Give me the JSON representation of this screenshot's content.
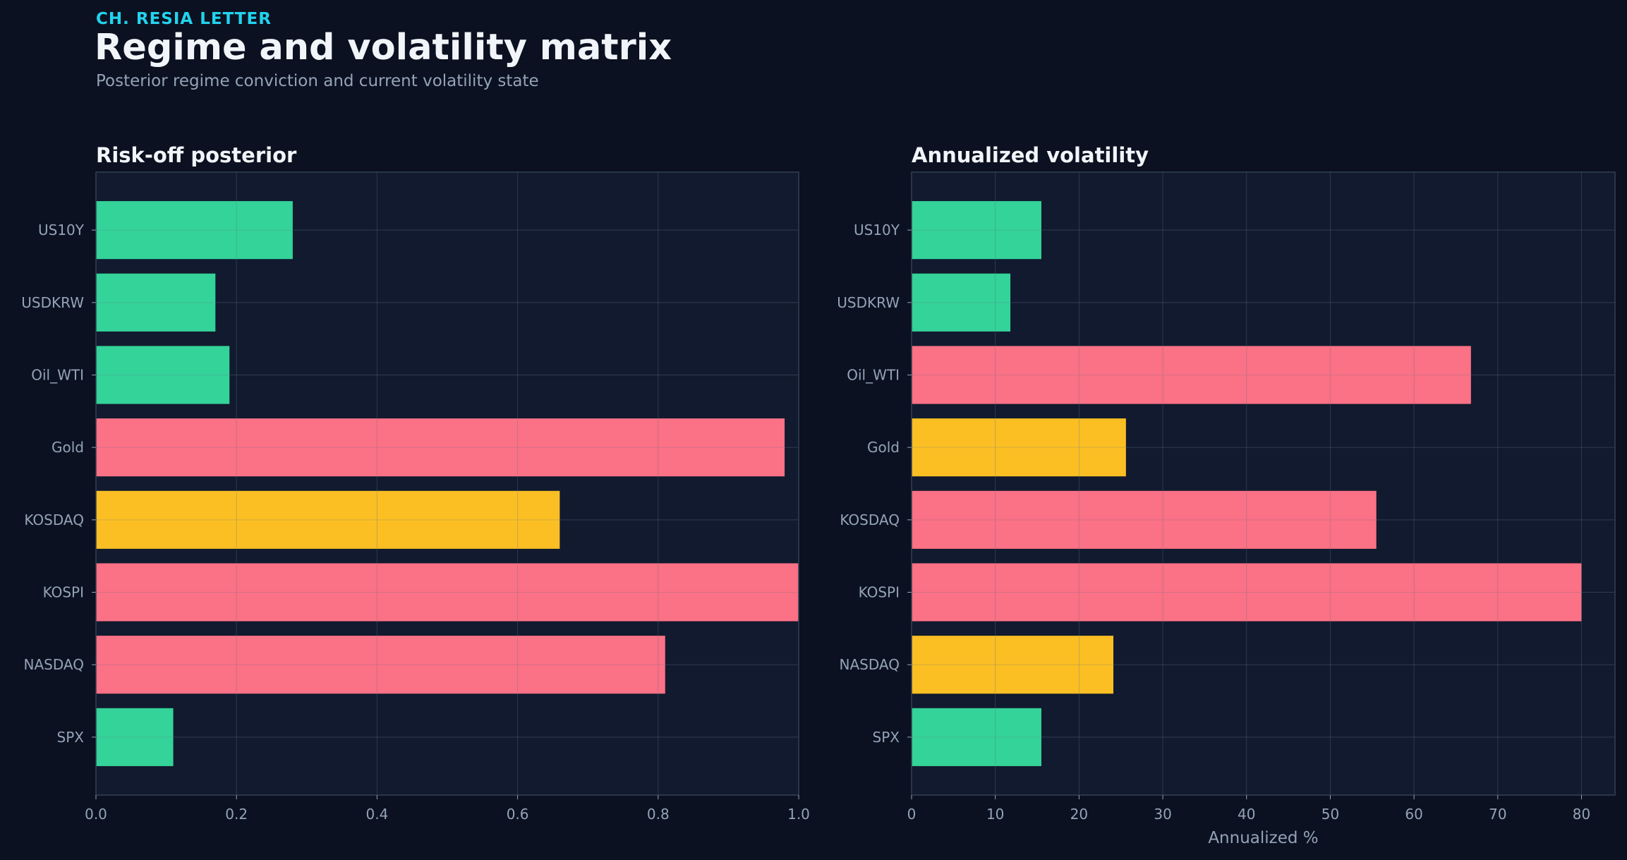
{
  "header": {
    "kicker": "CH. RESIA LETTER",
    "title": "Regime and volatility matrix",
    "subtitle": "Posterior regime conviction and current volatility state"
  },
  "colors": {
    "background": "#0b1120",
    "panel": "#111a2e",
    "grid": "#1f2a44",
    "frame": "#334155",
    "green": "#34d399",
    "red": "#fb7185",
    "amber": "#fbbf24",
    "text": "#f1f5f9",
    "muted": "#94a3b8",
    "accent": "#22d3ee"
  },
  "chart_data": [
    {
      "type": "bar",
      "orientation": "horizontal",
      "title": "Risk-off posterior",
      "xlabel": "",
      "ylabel": "",
      "categories": [
        "US10Y",
        "USDKRW",
        "Oil_WTI",
        "Gold",
        "KOSDAQ",
        "KOSPI",
        "NASDAQ",
        "SPX"
      ],
      "values": [
        0.28,
        0.17,
        0.19,
        0.98,
        0.66,
        1.0,
        0.81,
        0.11
      ],
      "bar_colors": [
        "green",
        "green",
        "green",
        "red",
        "amber",
        "red",
        "red",
        "green"
      ],
      "xlim": [
        0,
        1.0
      ],
      "xticks": [
        0.0,
        0.2,
        0.4,
        0.6,
        0.8,
        1.0
      ],
      "xtick_labels": [
        "0.0",
        "0.2",
        "0.4",
        "0.6",
        "0.8",
        "1.0"
      ],
      "grid": true
    },
    {
      "type": "bar",
      "orientation": "horizontal",
      "title": "Annualized volatility",
      "xlabel": "Annualized %",
      "ylabel": "",
      "categories": [
        "US10Y",
        "USDKRW",
        "Oil_WTI",
        "Gold",
        "KOSDAQ",
        "KOSPI",
        "NASDAQ",
        "SPX"
      ],
      "values": [
        15.5,
        11.8,
        66.8,
        25.6,
        55.5,
        80.0,
        24.1,
        15.5
      ],
      "bar_colors": [
        "green",
        "green",
        "red",
        "amber",
        "red",
        "red",
        "amber",
        "green"
      ],
      "xlim": [
        0,
        84
      ],
      "xticks": [
        0,
        10,
        20,
        30,
        40,
        50,
        60,
        70,
        80
      ],
      "xtick_labels": [
        "0",
        "10",
        "20",
        "30",
        "40",
        "50",
        "60",
        "70",
        "80"
      ],
      "grid": true
    }
  ]
}
